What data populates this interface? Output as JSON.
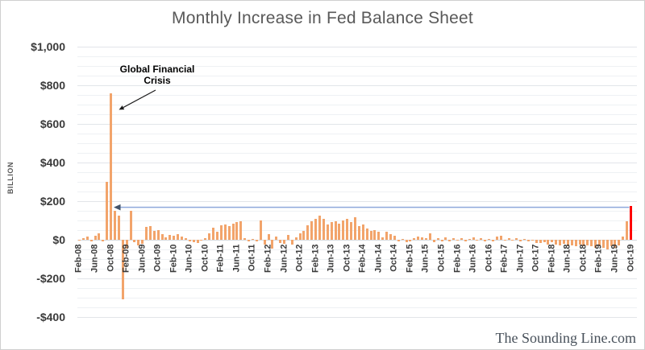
{
  "title": "Monthly Increase in Fed Balance Sheet",
  "watermark": "The Sounding Line.com",
  "annotations": {
    "gfc_label": "Global Financial Crisis",
    "comparison_line_value_billion": 168
  },
  "y_axis": {
    "unit_label": "BILLION",
    "ticks": [
      {
        "label": "$1,000",
        "value": 1000
      },
      {
        "label": "$800",
        "value": 800
      },
      {
        "label": "$600",
        "value": 600
      },
      {
        "label": "$400",
        "value": 400
      },
      {
        "label": "$200",
        "value": 200
      },
      {
        "label": "$0",
        "value": 0
      },
      {
        "label": "-$200",
        "value": -200
      },
      {
        "label": "-$400",
        "value": -400
      }
    ]
  },
  "x_axis": {
    "tick_labels": [
      "Feb-08",
      "Jun-08",
      "Oct-08",
      "Feb-09",
      "Jun-09",
      "Oct-09",
      "Feb-10",
      "Jun-10",
      "Oct-10",
      "Feb-11",
      "Jun-11",
      "Oct-11",
      "Feb-12",
      "Jun-12",
      "Oct-12",
      "Feb-13",
      "Jun-13",
      "Oct-13",
      "Feb-14",
      "Jun-14",
      "Oct-14",
      "Feb-15",
      "Jun-15",
      "Oct-15",
      "Feb-16",
      "Jun-16",
      "Oct-16",
      "Feb-17",
      "Jun-17",
      "Oct-17",
      "Feb-18",
      "Jun-18",
      "Oct-18",
      "Feb-19",
      "Jun-19",
      "Oct-19"
    ],
    "tick_every_n_months": 4
  },
  "colors": {
    "bar": "#F2A46B",
    "highlight_bar": "#FE0000",
    "comparison_line": "#8EA9DB",
    "comparison_arrowhead": "#44546A",
    "annotation_arrow": "#1a1a1a",
    "grid_minor": "#eef1f4",
    "grid_major": "#e2e5e9",
    "title_text": "#595959",
    "axis_text": "#3b3b3b"
  },
  "chart_data": {
    "type": "bar",
    "title": "Monthly Increase in Fed Balance Sheet",
    "ylabel": "BILLION",
    "ylim": [
      -400,
      1000
    ],
    "grid": true,
    "gridline_step_minor": 50,
    "gridline_step_labeled": 200,
    "highlight": {
      "index": 140,
      "month": "Oct-19",
      "color": "#FE0000"
    },
    "x": [
      "Feb-08",
      "Mar-08",
      "Apr-08",
      "May-08",
      "Jun-08",
      "Jul-08",
      "Aug-08",
      "Sep-08",
      "Oct-08",
      "Nov-08",
      "Dec-08",
      "Jan-09",
      "Feb-09",
      "Mar-09",
      "Apr-09",
      "May-09",
      "Jun-09",
      "Jul-09",
      "Aug-09",
      "Sep-09",
      "Oct-09",
      "Nov-09",
      "Dec-09",
      "Jan-10",
      "Feb-10",
      "Mar-10",
      "Apr-10",
      "May-10",
      "Jun-10",
      "Jul-10",
      "Aug-10",
      "Sep-10",
      "Oct-10",
      "Nov-10",
      "Dec-10",
      "Jan-11",
      "Feb-11",
      "Mar-11",
      "Apr-11",
      "May-11",
      "Jun-11",
      "Jul-11",
      "Aug-11",
      "Sep-11",
      "Oct-11",
      "Nov-11",
      "Dec-11",
      "Jan-12",
      "Feb-12",
      "Mar-12",
      "Apr-12",
      "May-12",
      "Jun-12",
      "Jul-12",
      "Aug-12",
      "Sep-12",
      "Oct-12",
      "Nov-12",
      "Dec-12",
      "Jan-13",
      "Feb-13",
      "Mar-13",
      "Apr-13",
      "May-13",
      "Jun-13",
      "Jul-13",
      "Aug-13",
      "Sep-13",
      "Oct-13",
      "Nov-13",
      "Dec-13",
      "Jan-14",
      "Feb-14",
      "Mar-14",
      "Apr-14",
      "May-14",
      "Jun-14",
      "Jul-14",
      "Aug-14",
      "Sep-14",
      "Oct-14",
      "Nov-14",
      "Dec-14",
      "Jan-15",
      "Feb-15",
      "Mar-15",
      "Apr-15",
      "May-15",
      "Jun-15",
      "Jul-15",
      "Aug-15",
      "Sep-15",
      "Oct-15",
      "Nov-15",
      "Dec-15",
      "Jan-16",
      "Feb-16",
      "Mar-16",
      "Apr-16",
      "May-16",
      "Jun-16",
      "Jul-16",
      "Aug-16",
      "Sep-16",
      "Oct-16",
      "Nov-16",
      "Dec-16",
      "Jan-17",
      "Feb-17",
      "Mar-17",
      "Apr-17",
      "May-17",
      "Jun-17",
      "Jul-17",
      "Aug-17",
      "Sep-17",
      "Oct-17",
      "Nov-17",
      "Dec-17",
      "Jan-18",
      "Feb-18",
      "Mar-18",
      "Apr-18",
      "May-18",
      "Jun-18",
      "Jul-18",
      "Aug-18",
      "Sep-18",
      "Oct-18",
      "Nov-18",
      "Dec-18",
      "Jan-19",
      "Feb-19",
      "Mar-19",
      "Apr-19",
      "May-19",
      "Jun-19",
      "Jul-19",
      "Aug-19",
      "Sep-19",
      "Oct-19"
    ],
    "values": [
      -5,
      8,
      15,
      -8,
      20,
      35,
      -10,
      300,
      760,
      150,
      126,
      -310,
      -45,
      150,
      -12,
      -28,
      -20,
      65,
      70,
      45,
      50,
      30,
      12,
      25,
      20,
      28,
      15,
      10,
      -8,
      -12,
      -15,
      -5,
      8,
      35,
      62,
      42,
      76,
      80,
      72,
      85,
      92,
      98,
      10,
      -8,
      5,
      -10,
      100,
      -25,
      30,
      -45,
      15,
      -18,
      -22,
      25,
      -25,
      12,
      35,
      48,
      75,
      95,
      110,
      125,
      110,
      78,
      92,
      96,
      85,
      99,
      110,
      92,
      115,
      70,
      78,
      57,
      46,
      50,
      40,
      12,
      43,
      29,
      22,
      -8,
      5,
      -12,
      -10,
      8,
      15,
      12,
      10,
      32,
      -12,
      10,
      -8,
      12,
      -10,
      8,
      -5,
      10,
      -8,
      5,
      12,
      -5,
      8,
      -10,
      5,
      -8,
      15,
      20,
      -5,
      8,
      -5,
      10,
      -8,
      5,
      -10,
      -5,
      -15,
      -17,
      -14,
      -25,
      -14,
      -25,
      -28,
      -21,
      -35,
      -28,
      -35,
      -25,
      -35,
      -28,
      -35,
      -42,
      -35,
      -42,
      -49,
      -35,
      -42,
      -28,
      15,
      97,
      174
    ]
  }
}
